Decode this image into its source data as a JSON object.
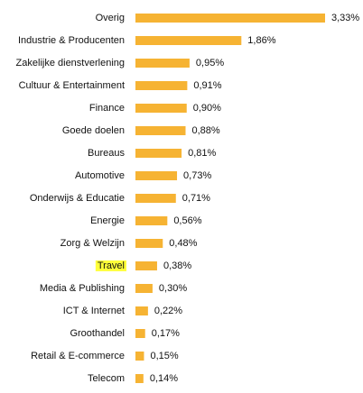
{
  "chart_data": {
    "type": "hbar",
    "categories": [
      "Overig",
      "Industrie & Producenten",
      "Zakelijke dienstverlening",
      "Cultuur & Entertainment",
      "Finance",
      "Goede doelen",
      "Bureaus",
      "Automotive",
      "Onderwijs & Educatie",
      "Energie",
      "Zorg & Welzijn",
      "Travel",
      "Media & Publishing",
      "ICT & Internet",
      "Groothandel",
      "Retail & E-commerce",
      "Telecom"
    ],
    "values": [
      3.33,
      1.86,
      0.95,
      0.91,
      0.9,
      0.88,
      0.81,
      0.73,
      0.71,
      0.56,
      0.48,
      0.38,
      0.3,
      0.22,
      0.17,
      0.15,
      0.14
    ],
    "value_labels": [
      "3,33%",
      "1,86%",
      "0,95%",
      "0,91%",
      "0,90%",
      "0,88%",
      "0,81%",
      "0,73%",
      "0,71%",
      "0,56%",
      "0,48%",
      "0,38%",
      "0,30%",
      "0,22%",
      "0,17%",
      "0,15%",
      "0,14%"
    ],
    "color": "#f6b333",
    "highlight": {
      "index": 11,
      "color": "#ffff3a"
    }
  }
}
